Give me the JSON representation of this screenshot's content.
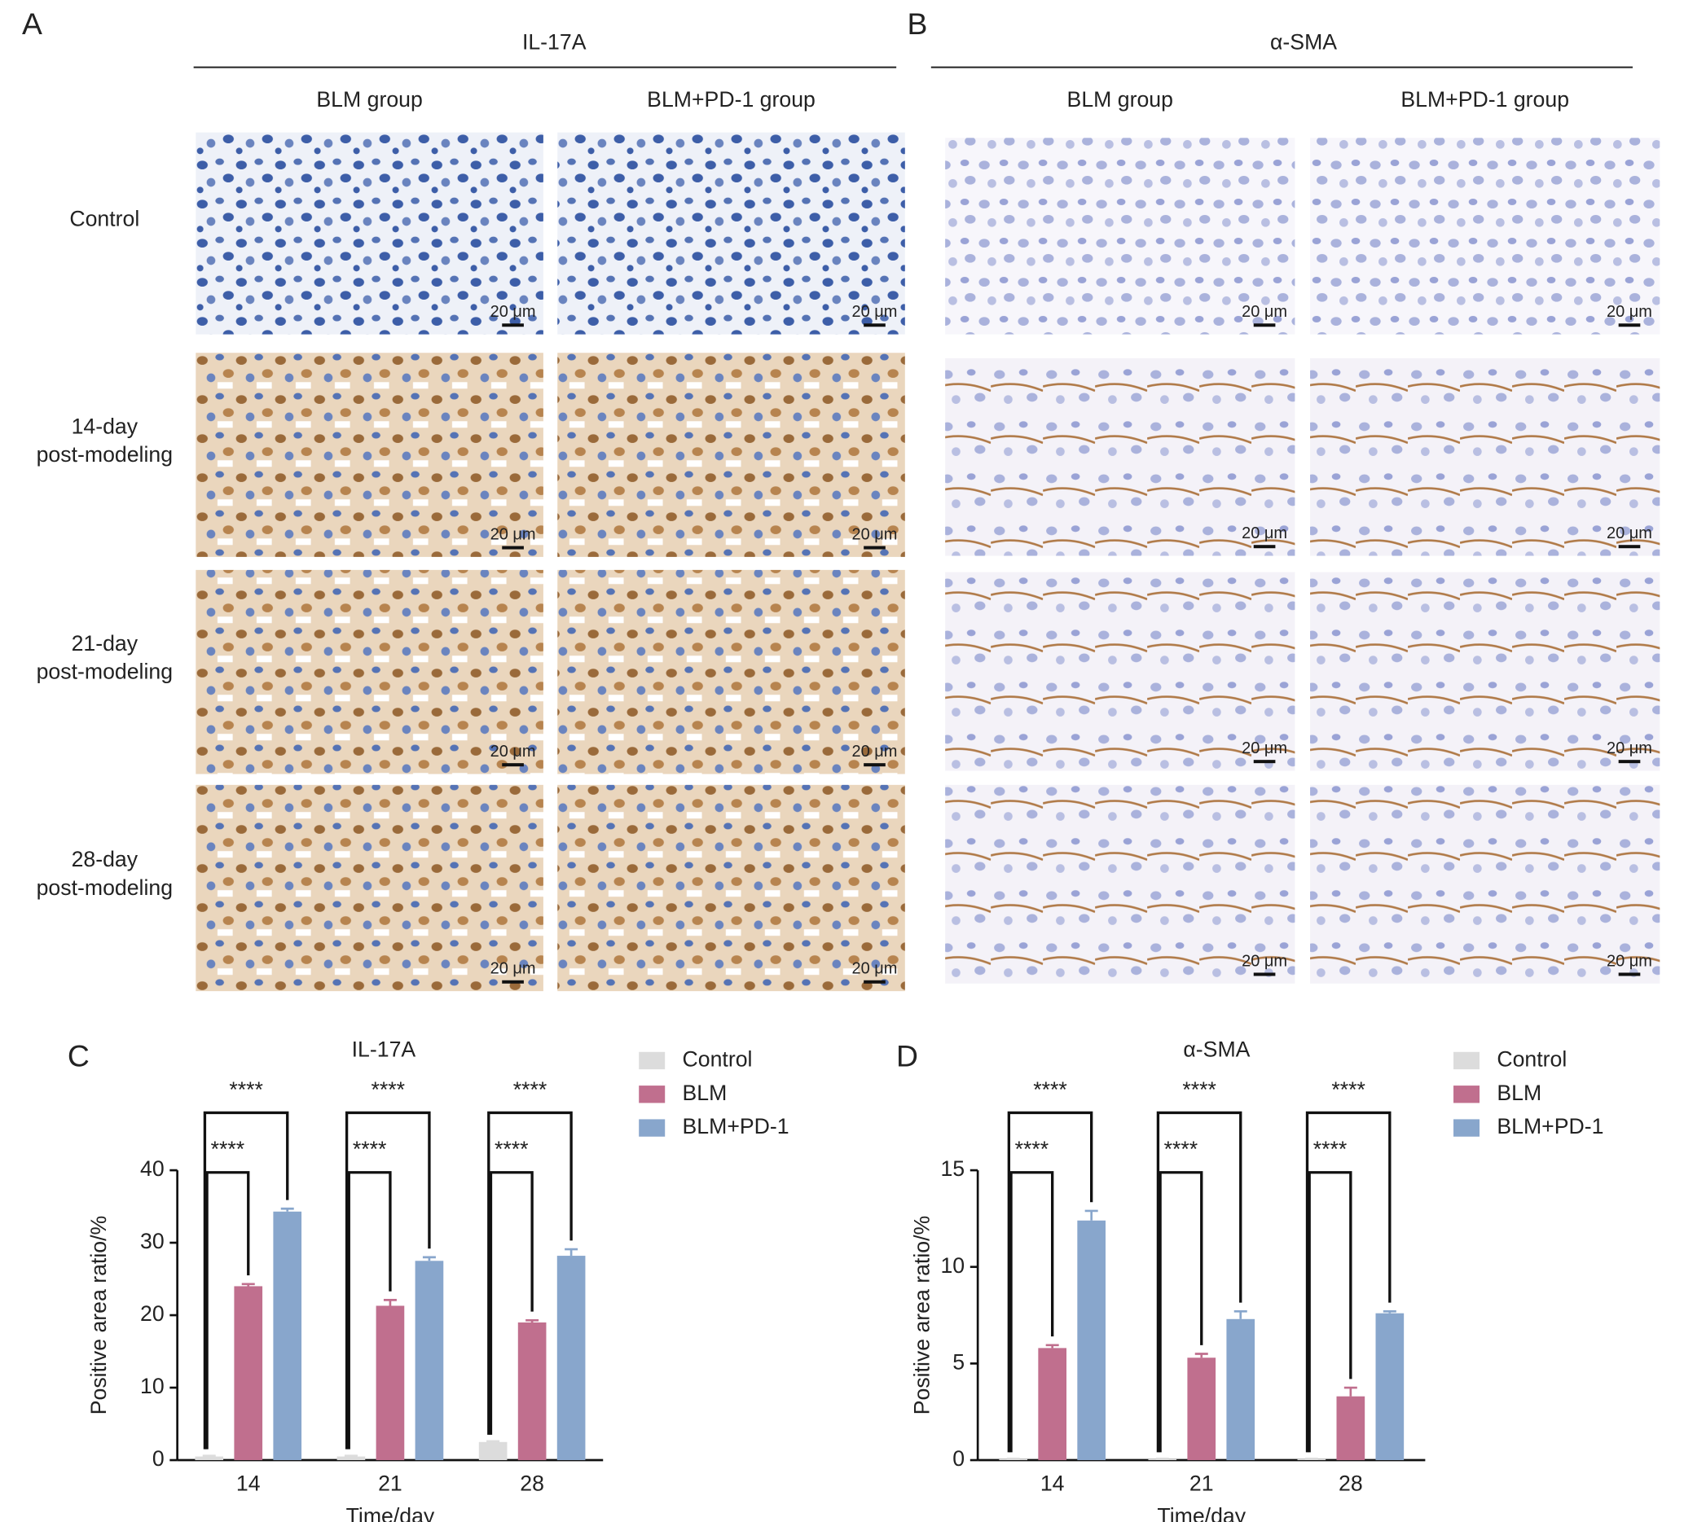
{
  "micrographs": {
    "scale_bar": "20 μm",
    "panels": [
      {
        "label": "A",
        "stain": "IL-17A",
        "columns": [
          "BLM group",
          "BLM+PD-1 group"
        ]
      },
      {
        "label": "B",
        "stain": "α-SMA",
        "columns": [
          "BLM group",
          "BLM+PD-1 group"
        ]
      }
    ],
    "rows": [
      [
        "Control"
      ],
      [
        "14-day",
        "post-modeling"
      ],
      [
        "21-day",
        "post-modeling"
      ],
      [
        "28-day",
        "post-modeling"
      ]
    ]
  },
  "chart_data": [
    {
      "type": "bar",
      "panel_label": "C",
      "title": "IL-17A",
      "x_label": "Time/day",
      "y_label": "Positive area ratio/%",
      "categories": [
        "14",
        "21",
        "28"
      ],
      "series": [
        {
          "name": "Control",
          "color": "#dcdcdc",
          "values": [
            0.5,
            0.5,
            2.5
          ],
          "errors": [
            0.1,
            0.1,
            0.1
          ]
        },
        {
          "name": "BLM",
          "color": "#c06f8e",
          "values": [
            24,
            21.3,
            19
          ],
          "errors": [
            0.3,
            0.8,
            0.3
          ]
        },
        {
          "name": "BLM+PD-1",
          "color": "#88a6cc",
          "values": [
            34.3,
            27.5,
            28.2
          ],
          "errors": [
            0.4,
            0.5,
            0.9
          ]
        }
      ],
      "ylim": [
        0,
        40
      ],
      "yticks": [
        0,
        10,
        20,
        30,
        40
      ],
      "significance": [
        [
          "****",
          "****"
        ],
        [
          "****",
          "****"
        ],
        [
          "****",
          "****"
        ]
      ]
    },
    {
      "type": "bar",
      "panel_label": "D",
      "title": "α-SMA",
      "x_label": "Time/day",
      "y_label": "Positive area ratio/%",
      "categories": [
        "14",
        "21",
        "28"
      ],
      "series": [
        {
          "name": "Control",
          "color": "#dcdcdc",
          "values": [
            0.05,
            0.05,
            0.05
          ],
          "errors": [
            0.02,
            0.02,
            0.02
          ]
        },
        {
          "name": "BLM",
          "color": "#c06f8e",
          "values": [
            5.8,
            5.3,
            3.3
          ],
          "errors": [
            0.15,
            0.2,
            0.45
          ]
        },
        {
          "name": "BLM+PD-1",
          "color": "#88a6cc",
          "values": [
            12.4,
            7.3,
            7.6
          ],
          "errors": [
            0.5,
            0.4,
            0.1
          ]
        }
      ],
      "ylim": [
        0,
        15
      ],
      "yticks": [
        0,
        5,
        10,
        15
      ],
      "significance": [
        [
          "****",
          "****"
        ],
        [
          "****",
          "****"
        ],
        [
          "****",
          "****"
        ]
      ]
    }
  ]
}
